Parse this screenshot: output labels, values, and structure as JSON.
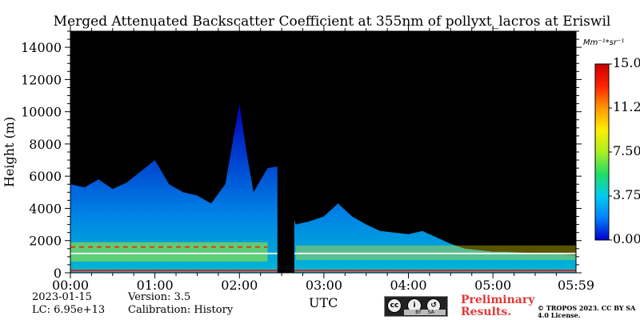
{
  "chart_data": {
    "type": "heatmap",
    "title": "Merged Attenuated Backscatter Coefficient at 355nm of pollyxt_lacros at Eriswil",
    "xlabel": "UTC",
    "ylabel": "Height (m)",
    "x_ticks": [
      "00:00",
      "01:00",
      "02:00",
      "03:00",
      "04:00",
      "05:00",
      "05:59"
    ],
    "x_tick_minutes": [
      0,
      60,
      120,
      180,
      240,
      300,
      359
    ],
    "xlim_minutes": [
      0,
      359
    ],
    "y_ticks": [
      "0",
      "2000",
      "4000",
      "6000",
      "8000",
      "10000",
      "12000",
      "14000"
    ],
    "y_tick_values": [
      0,
      2000,
      4000,
      6000,
      8000,
      10000,
      12000,
      14000
    ],
    "ylim": [
      0,
      15000
    ],
    "colorbar": {
      "unit": "Mm⁻¹*sr⁻¹",
      "ticks": [
        "0.00",
        "3.75",
        "7.50",
        "11.25",
        "15.00"
      ],
      "tick_values": [
        0,
        3.75,
        7.5,
        11.25,
        15
      ],
      "range": [
        0,
        15
      ],
      "colors": [
        "#0000cc",
        "#0080ff",
        "#00ccee",
        "#22dd66",
        "#aaee22",
        "#ffee00",
        "#ff9900",
        "#ff2200",
        "#cc0000"
      ]
    },
    "no_data_interval_minutes": [
      147,
      159
    ],
    "signal_top_profile": {
      "minutes": [
        0,
        10,
        20,
        30,
        40,
        50,
        60,
        70,
        80,
        90,
        100,
        110,
        120,
        125,
        130,
        140,
        147,
        160,
        170,
        180,
        190,
        200,
        210,
        220,
        230,
        240,
        250,
        260,
        270,
        280,
        290,
        300,
        310,
        320,
        330,
        340,
        350,
        359
      ],
      "height_m": [
        5500,
        5300,
        5800,
        5200,
        5600,
        6300,
        7000,
        5500,
        5000,
        4800,
        4300,
        5500,
        10500,
        7500,
        5000,
        6500,
        6600,
        3000,
        3200,
        3500,
        4300,
        3500,
        3000,
        2600,
        2500,
        2400,
        2600,
        2200,
        1800,
        1500,
        1400,
        1300,
        1300,
        1250,
        1200,
        1200,
        1150,
        1100
      ]
    },
    "bright_layer_height_m": 1200
  },
  "footer": {
    "date": "2023-01-15",
    "lc": "LC: 6.95e+13",
    "version": "Version: 3.5",
    "calibration": "Calibration: History",
    "license_badge_text": "BY SA",
    "preliminary": "Preliminary Results.",
    "copyright": "© TROPOS 2023. CC BY SA 4.0 License."
  },
  "colors": {
    "background": "#000000",
    "preliminary": "#e03a3a"
  }
}
